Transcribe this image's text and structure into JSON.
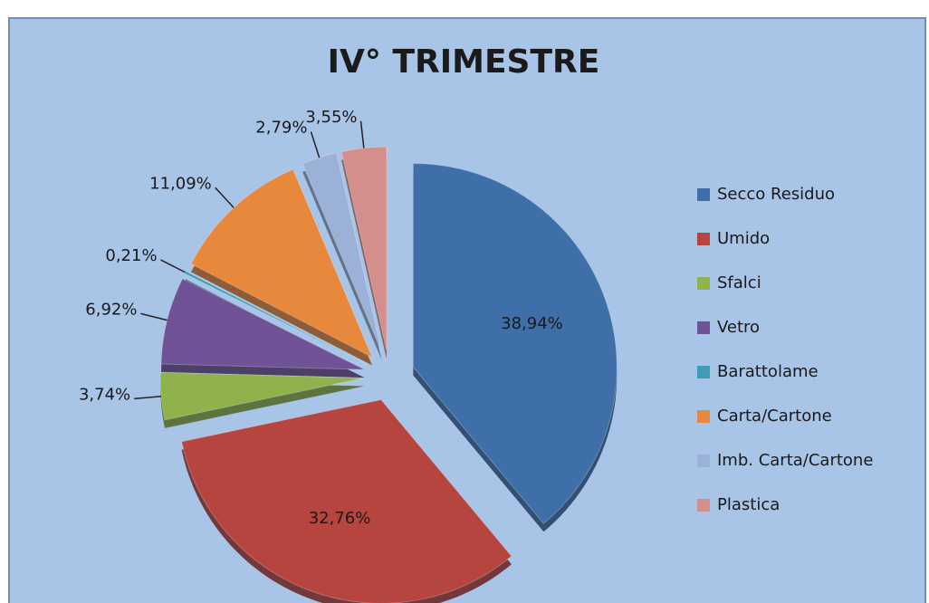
{
  "chart_data": {
    "type": "pie",
    "title": "IV° TRIMESTRE",
    "categories": [
      "Secco Residuo",
      "Umido",
      "Sfalci",
      "Vetro",
      "Barattolame",
      "Carta/Cartone",
      "Imb. Carta/Cartone",
      "Plastica"
    ],
    "values": [
      38.94,
      32.76,
      3.74,
      6.92,
      0.21,
      11.09,
      2.79,
      3.55
    ],
    "value_labels": [
      "38,94%",
      "32,76%",
      "3,74%",
      "6,92%",
      "0,21%",
      "11,09%",
      "2,79%",
      "3,55%"
    ],
    "colors": [
      "#3f6fa9",
      "#b6453f",
      "#8fb24d",
      "#6f5396",
      "#3e9db6",
      "#e8883d",
      "#9bb1d8",
      "#d48f8c"
    ],
    "legend": "right"
  }
}
